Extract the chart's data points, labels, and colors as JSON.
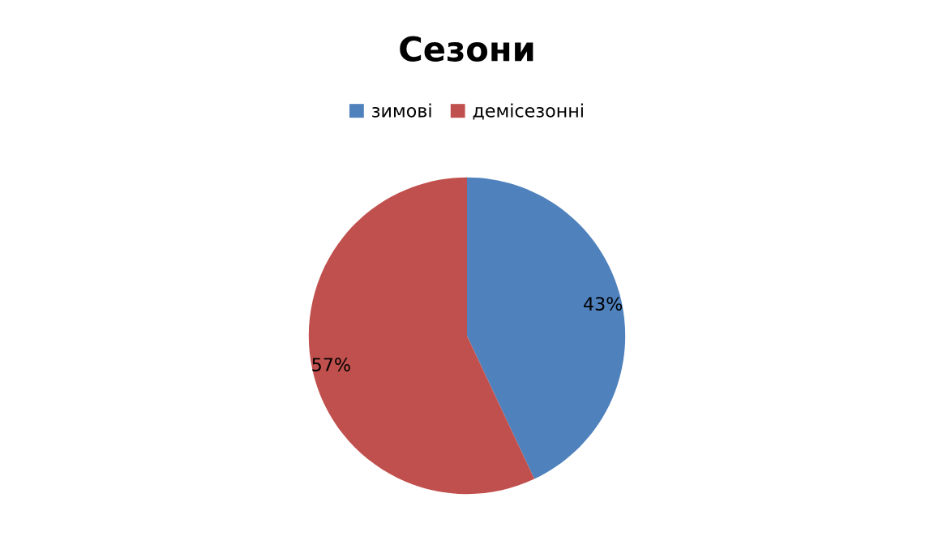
{
  "chart_data": {
    "type": "pie",
    "title": "Сезони",
    "categories": [
      "зимові",
      "демісезонні"
    ],
    "values": [
      43,
      57
    ],
    "colors": [
      "#4f81bd",
      "#c0504d"
    ],
    "value_labels": [
      "43%",
      "57%"
    ],
    "legend": "top"
  }
}
